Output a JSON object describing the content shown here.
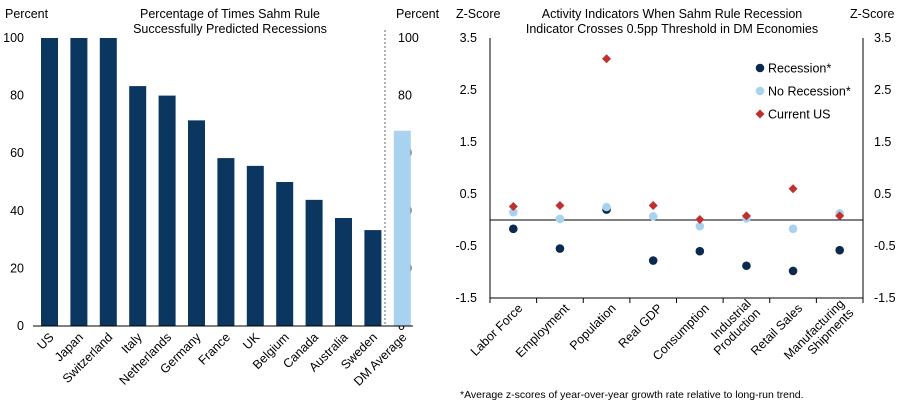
{
  "chart_data": [
    {
      "type": "bar",
      "title": [
        "Percentage of Times Sahm Rule",
        "Successfully Predicted Recessions"
      ],
      "ylabel_left": "Percent",
      "ylabel_right": "Percent",
      "ylim": [
        0,
        100
      ],
      "yticks": [
        0,
        20,
        40,
        60,
        80,
        100
      ],
      "categories": [
        "US",
        "Japan",
        "Switzerland",
        "Italy",
        "Netherlands",
        "Germany",
        "France",
        "UK",
        "Belgium",
        "Canada",
        "Australia",
        "Sweden",
        "DM Average"
      ],
      "values": [
        100,
        100,
        100,
        83.3,
        80,
        71.4,
        58.3,
        55.6,
        50,
        43.8,
        37.5,
        33.3,
        67.8
      ],
      "colors": {
        "bar": "#0b3660",
        "average": "#a9d2f0"
      }
    },
    {
      "type": "scatter",
      "title": [
        "Activity Indicators When Sahm Rule Recession",
        "Indicator Crosses 0.5pp Threshold  in DM Economies"
      ],
      "ylabel_left": "Z-Score",
      "ylabel_right": "Z-Score",
      "ylim": [
        -1.5,
        3.5
      ],
      "yticks": [
        3.5,
        2.5,
        1.5,
        0.5,
        -0.5,
        -1.5
      ],
      "categories": [
        [
          "Labor Force"
        ],
        [
          "Employment"
        ],
        [
          "Population"
        ],
        [
          "Real GDP"
        ],
        [
          "Consumption"
        ],
        [
          "Industrial",
          "Production"
        ],
        [
          "Retail Sales"
        ],
        [
          "Manufacturing",
          "Shipments"
        ]
      ],
      "series": [
        {
          "name": "Recession*",
          "marker": "circle",
          "color": "#0b2a4e",
          "values": [
            -0.17,
            -0.55,
            0.2,
            -0.78,
            -0.6,
            -0.88,
            -0.98,
            -0.58
          ]
        },
        {
          "name": "No Recession*",
          "marker": "circle",
          "color": "#a9d2f0",
          "values": [
            0.15,
            0.02,
            0.25,
            0.07,
            -0.12,
            0.03,
            -0.17,
            0.13
          ]
        },
        {
          "name": "Current US",
          "marker": "diamond",
          "color": "#c0302f",
          "values": [
            0.26,
            0.28,
            3.1,
            0.28,
            0.01,
            0.08,
            0.6,
            0.08
          ]
        }
      ],
      "footnote": "*Average z-scores of year-over-year growth rate relative to long-run trend."
    }
  ]
}
